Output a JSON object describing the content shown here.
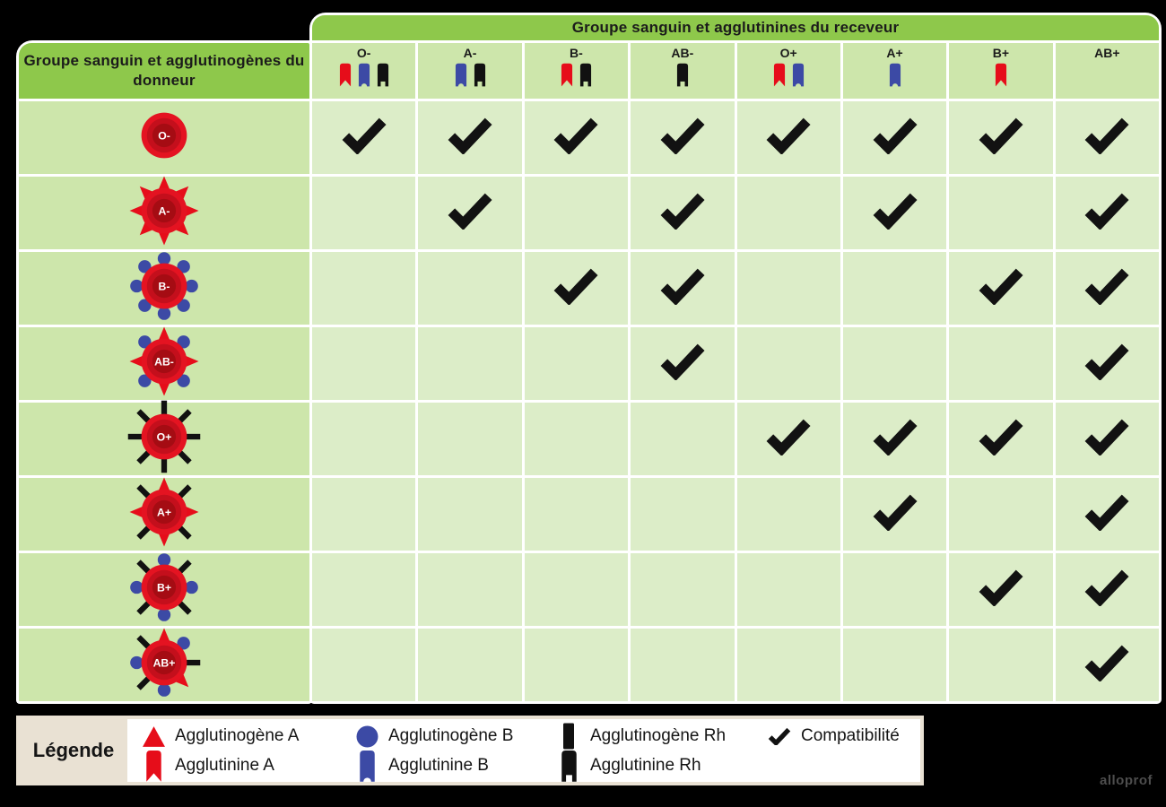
{
  "title_receiver": "Groupe sanguin et agglutinines du receveur",
  "title_donor": "Groupe sanguin et agglutinogènes du donneur",
  "colors": {
    "header_green": "#8ec84b",
    "cell_medium_green": "#cde6ab",
    "cell_light_green": "#dcedc8",
    "red": "#e60d1a",
    "cell_red_outer": "#e41321",
    "cell_red_mid": "#c40f1c",
    "cell_red_core": "#a50c13",
    "blue": "#3c4aa5",
    "black": "#111111",
    "legend_beige": "#e9e1d3",
    "check_black": "#121212"
  },
  "receivers": [
    {
      "label": "O-",
      "agglutinins": [
        "A",
        "B",
        "Rh"
      ]
    },
    {
      "label": "A-",
      "agglutinins": [
        "B",
        "Rh"
      ]
    },
    {
      "label": "B-",
      "agglutinins": [
        "A",
        "Rh"
      ]
    },
    {
      "label": "AB-",
      "agglutinins": [
        "Rh"
      ]
    },
    {
      "label": "O+",
      "agglutinins": [
        "A",
        "B"
      ]
    },
    {
      "label": "A+",
      "agglutinins": [
        "B"
      ]
    },
    {
      "label": "B+",
      "agglutinins": [
        "A"
      ]
    },
    {
      "label": "AB+",
      "agglutinins": []
    }
  ],
  "donors": [
    {
      "label": "O-",
      "antigens": []
    },
    {
      "label": "A-",
      "antigens": [
        [
          "A",
          0
        ],
        [
          "A",
          45
        ],
        [
          "A",
          90
        ],
        [
          "A",
          135
        ],
        [
          "A",
          180
        ],
        [
          "A",
          225
        ],
        [
          "A",
          270
        ],
        [
          "A",
          315
        ]
      ]
    },
    {
      "label": "B-",
      "antigens": [
        [
          "B",
          0
        ],
        [
          "B",
          45
        ],
        [
          "B",
          90
        ],
        [
          "B",
          135
        ],
        [
          "B",
          180
        ],
        [
          "B",
          225
        ],
        [
          "B",
          270
        ],
        [
          "B",
          315
        ]
      ]
    },
    {
      "label": "AB-",
      "antigens": [
        [
          "A",
          0
        ],
        [
          "B",
          45
        ],
        [
          "A",
          90
        ],
        [
          "B",
          135
        ],
        [
          "A",
          180
        ],
        [
          "B",
          225
        ],
        [
          "A",
          270
        ],
        [
          "B",
          315
        ]
      ]
    },
    {
      "label": "O+",
      "antigens": [
        [
          "Rh",
          0
        ],
        [
          "Rh",
          45
        ],
        [
          "Rh",
          90
        ],
        [
          "Rh",
          135
        ],
        [
          "Rh",
          180
        ],
        [
          "Rh",
          225
        ],
        [
          "Rh",
          270
        ],
        [
          "Rh",
          315
        ]
      ]
    },
    {
      "label": "A+",
      "antigens": [
        [
          "A",
          0
        ],
        [
          "Rh",
          45
        ],
        [
          "A",
          90
        ],
        [
          "Rh",
          135
        ],
        [
          "A",
          180
        ],
        [
          "Rh",
          225
        ],
        [
          "A",
          270
        ],
        [
          "Rh",
          315
        ]
      ]
    },
    {
      "label": "B+",
      "antigens": [
        [
          "B",
          0
        ],
        [
          "Rh",
          45
        ],
        [
          "B",
          90
        ],
        [
          "Rh",
          135
        ],
        [
          "B",
          180
        ],
        [
          "Rh",
          225
        ],
        [
          "B",
          270
        ],
        [
          "Rh",
          315
        ]
      ]
    },
    {
      "label": "AB+",
      "antigens": [
        [
          "A",
          0
        ],
        [
          "B",
          45
        ],
        [
          "Rh",
          90
        ],
        [
          "A",
          135
        ],
        [
          "B",
          180
        ],
        [
          "Rh",
          225
        ],
        [
          "B",
          270
        ],
        [
          "Rh",
          315
        ]
      ]
    }
  ],
  "compatibility": [
    [
      1,
      1,
      1,
      1,
      1,
      1,
      1,
      1
    ],
    [
      0,
      1,
      0,
      1,
      0,
      1,
      0,
      1
    ],
    [
      0,
      0,
      1,
      1,
      0,
      0,
      1,
      1
    ],
    [
      0,
      0,
      0,
      1,
      0,
      0,
      0,
      1
    ],
    [
      0,
      0,
      0,
      0,
      1,
      1,
      1,
      1
    ],
    [
      0,
      0,
      0,
      0,
      0,
      1,
      0,
      1
    ],
    [
      0,
      0,
      0,
      0,
      0,
      0,
      1,
      1
    ],
    [
      0,
      0,
      0,
      0,
      0,
      0,
      0,
      1
    ]
  ],
  "legend": {
    "label": "Légende",
    "row1": [
      {
        "icon": "agglutinogen-A-icon",
        "label": "Agglutinogène A"
      },
      {
        "icon": "agglutinogen-B-icon",
        "label": "Agglutinogène B"
      },
      {
        "icon": "agglutinogen-Rh-icon",
        "label": "Agglutinogène Rh"
      },
      {
        "icon": "check-icon",
        "label": "Compatibilité"
      }
    ],
    "row2": [
      {
        "icon": "agglutinin-A-icon",
        "label": "Agglutinine A"
      },
      {
        "icon": "agglutinin-B-icon",
        "label": "Agglutinine B"
      },
      {
        "icon": "agglutinin-Rh-icon",
        "label": "Agglutinine Rh"
      }
    ]
  },
  "watermark": "alloprof"
}
